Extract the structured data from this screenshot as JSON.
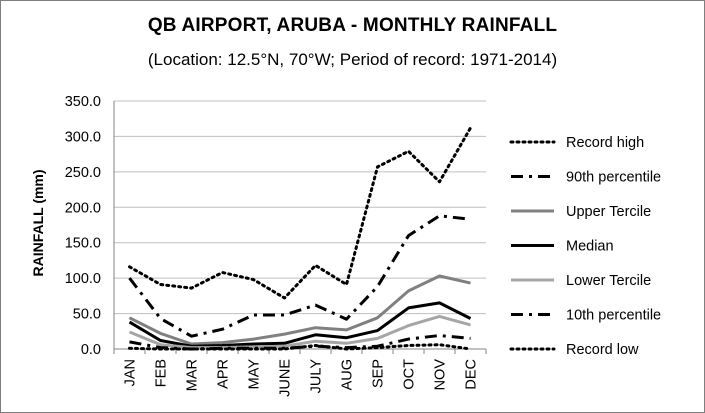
{
  "chart_data": {
    "type": "line",
    "title": "QB AIRPORT, ARUBA - MONTHLY RAINFALL",
    "subtitle": "(Location: 12.5°N, 70°W; Period of record: 1971-2014)",
    "xlabel": "",
    "ylabel": "RAINFALL (mm)",
    "ylim": [
      0,
      350
    ],
    "ytick_step": 50,
    "ytick_labels": [
      "0.0",
      "50.0",
      "100.0",
      "150.0",
      "200.0",
      "250.0",
      "300.0",
      "350.0"
    ],
    "categories": [
      "JAN",
      "FEB",
      "MAR",
      "APR",
      "MAY",
      "JUNE",
      "JULY",
      "AUG",
      "SEP",
      "OCT",
      "NOV",
      "DEC"
    ],
    "grid": "horizontal",
    "legend_position": "right",
    "series": [
      {
        "name": "Record high",
        "color": "#000000",
        "style": "dotted",
        "width": 3,
        "values": [
          116,
          91,
          86,
          108,
          98,
          72,
          118,
          91,
          257,
          279,
          236,
          312
        ]
      },
      {
        "name": "90th percentile",
        "color": "#000000",
        "style": "dashdot",
        "width": 3,
        "values": [
          100,
          43,
          18,
          28,
          48,
          48,
          62,
          42,
          88,
          160,
          188,
          183
        ]
      },
      {
        "name": "Upper Tercile",
        "color": "#808080",
        "style": "solid",
        "width": 3,
        "values": [
          44,
          22,
          7,
          9,
          14,
          21,
          30,
          27,
          44,
          82,
          103,
          93
        ]
      },
      {
        "name": "Median",
        "color": "#000000",
        "style": "solid",
        "width": 3,
        "values": [
          38,
          12,
          4,
          5,
          7,
          8,
          20,
          16,
          26,
          58,
          65,
          43
        ]
      },
      {
        "name": "Lower Tercile",
        "color": "#a6a6a6",
        "style": "solid",
        "width": 3,
        "values": [
          24,
          6,
          2,
          2,
          3,
          4,
          11,
          8,
          15,
          33,
          46,
          34
        ]
      },
      {
        "name": "10th percentile",
        "color": "#000000",
        "style": "dashdot",
        "width": 3,
        "values": [
          10,
          2,
          0,
          1,
          1,
          1,
          4,
          2,
          4,
          14,
          19,
          15
        ]
      },
      {
        "name": "Record low",
        "color": "#000000",
        "style": "dotted",
        "width": 3,
        "values": [
          1,
          0,
          0,
          0,
          0,
          0,
          5,
          0,
          2,
          5,
          6,
          0
        ]
      }
    ]
  }
}
